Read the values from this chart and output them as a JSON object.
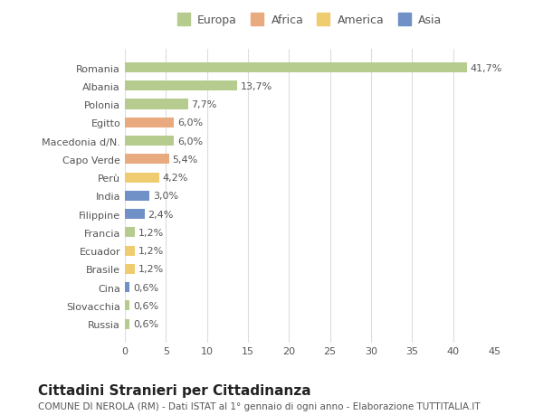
{
  "categories": [
    "Romania",
    "Albania",
    "Polonia",
    "Egitto",
    "Macedonia d/N.",
    "Capo Verde",
    "Perù",
    "India",
    "Filippine",
    "Francia",
    "Ecuador",
    "Brasile",
    "Cina",
    "Slovacchia",
    "Russia"
  ],
  "values": [
    41.7,
    13.7,
    7.7,
    6.0,
    6.0,
    5.4,
    4.2,
    3.0,
    2.4,
    1.2,
    1.2,
    1.2,
    0.6,
    0.6,
    0.6
  ],
  "labels": [
    "41,7%",
    "13,7%",
    "7,7%",
    "6,0%",
    "6,0%",
    "5,4%",
    "4,2%",
    "3,0%",
    "2,4%",
    "1,2%",
    "1,2%",
    "1,2%",
    "0,6%",
    "0,6%",
    "0,6%"
  ],
  "colors": [
    "#b5cc8e",
    "#b5cc8e",
    "#b5cc8e",
    "#e8aa7e",
    "#b5cc8e",
    "#e8aa7e",
    "#f0cc70",
    "#7090c8",
    "#7090c8",
    "#b5cc8e",
    "#f0cc70",
    "#f0cc70",
    "#7090c8",
    "#b5cc8e",
    "#b5cc8e"
  ],
  "legend": {
    "Europa": "#b5cc8e",
    "Africa": "#e8aa7e",
    "America": "#f0cc70",
    "Asia": "#7090c8"
  },
  "title": "Cittadini Stranieri per Cittadinanza",
  "subtitle": "COMUNE DI NEROLA (RM) - Dati ISTAT al 1° gennaio di ogni anno - Elaborazione TUTTITALIA.IT",
  "xlim": [
    0,
    45
  ],
  "xticks": [
    0,
    5,
    10,
    15,
    20,
    25,
    30,
    35,
    40,
    45
  ],
  "background_color": "#ffffff",
  "bar_background": "#ffffff",
  "grid_color": "#dddddd",
  "text_color": "#555555",
  "label_fontsize": 8,
  "tick_fontsize": 8,
  "title_fontsize": 11,
  "subtitle_fontsize": 7.5
}
